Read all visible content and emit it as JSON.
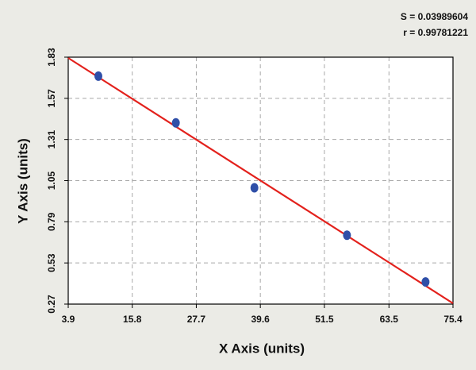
{
  "chart_data": {
    "type": "scatter",
    "annotations": [
      "S = 0.03989604",
      "r = 0.99781221"
    ],
    "x_label": "X Axis (units)",
    "y_label": "Y Axis (units)",
    "x": [
      9.5,
      23.9,
      38.5,
      55.7,
      70.3
    ],
    "values": [
      1.71,
      1.415,
      1.005,
      0.705,
      0.41
    ],
    "color": "#2f4fa8",
    "fit": {
      "x": [
        3.9,
        75.4
      ],
      "values": [
        1.825,
        0.275
      ],
      "color": "#e3211c"
    },
    "xlim": [
      3.9,
      75.4
    ],
    "xticks": [
      3.9,
      15.8,
      27.7,
      39.6,
      51.5,
      63.5,
      75.4
    ],
    "ylim": [
      0.27,
      1.83
    ],
    "yticks": [
      0.27,
      0.53,
      0.79,
      1.05,
      1.31,
      1.57,
      1.83
    ],
    "grid": true
  }
}
